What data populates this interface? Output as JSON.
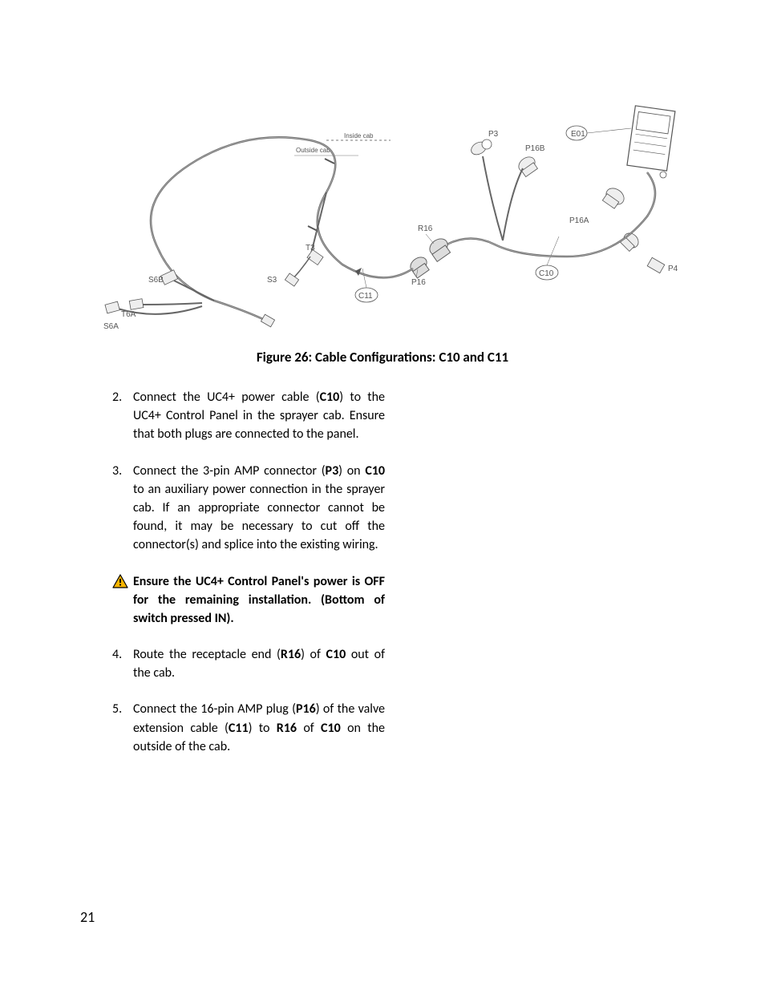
{
  "page_number": "21",
  "figure": {
    "caption": "Figure 26: Cable Configurations: C10 and C11",
    "labels": {
      "inside_cab": "Inside cab",
      "outside_cab": "Outside cab",
      "P3": "P3",
      "E01": "E01",
      "P16B": "P16B",
      "P16A": "P16A",
      "P4": "P4",
      "C10": "C10",
      "R16": "R16",
      "P16": "P16",
      "C11": "C11",
      "T3": "T3",
      "S3": "S3",
      "S6B": "S6B",
      "T6A": "T6A",
      "S6A": "S6A"
    },
    "colors": {
      "line": "#666666",
      "label": "#555555",
      "background": "#ffffff"
    }
  },
  "steps": [
    {
      "num": "2.",
      "runs": [
        {
          "t": "Connect the UC4+ power cable ("
        },
        {
          "t": "C10",
          "b": true
        },
        {
          "t": ") to the UC4+ Control Panel in the sprayer cab. Ensure that both plugs are connected to the panel."
        }
      ]
    },
    {
      "num": "3.",
      "runs": [
        {
          "t": "Connect the 3-pin AMP connector ("
        },
        {
          "t": "P3",
          "b": true
        },
        {
          "t": ") on "
        },
        {
          "t": "C10",
          "b": true
        },
        {
          "t": " to an auxiliary power connection in the sprayer cab.  If an appropriate connector cannot be found, it may be necessary to cut off the connector(s) and splice into the existing wiring."
        }
      ]
    }
  ],
  "warning": {
    "text": "Ensure the UC4+ Control Panel's power is OFF for the remaining installation.  (Bottom of switch pressed IN)."
  },
  "steps2": [
    {
      "num": "4.",
      "runs": [
        {
          "t": "Route the receptacle end ("
        },
        {
          "t": "R16",
          "b": true
        },
        {
          "t": ") of "
        },
        {
          "t": "C10",
          "b": true
        },
        {
          "t": " out of the cab."
        }
      ]
    },
    {
      "num": "5.",
      "runs": [
        {
          "t": "Connect the 16-pin AMP plug ("
        },
        {
          "t": "P16",
          "b": true
        },
        {
          "t": ") of the valve extension cable ("
        },
        {
          "t": "C11",
          "b": true
        },
        {
          "t": ") to "
        },
        {
          "t": "R16",
          "b": true
        },
        {
          "t": " of "
        },
        {
          "t": "C10",
          "b": true
        },
        {
          "t": " on the outside of the cab."
        }
      ]
    }
  ],
  "text_fontsize": 16,
  "caption_fontsize": 17,
  "text_color": "#000000",
  "background_color": "#ffffff",
  "warning_icon": {
    "fill": "#f7b500",
    "stroke": "#000000"
  }
}
